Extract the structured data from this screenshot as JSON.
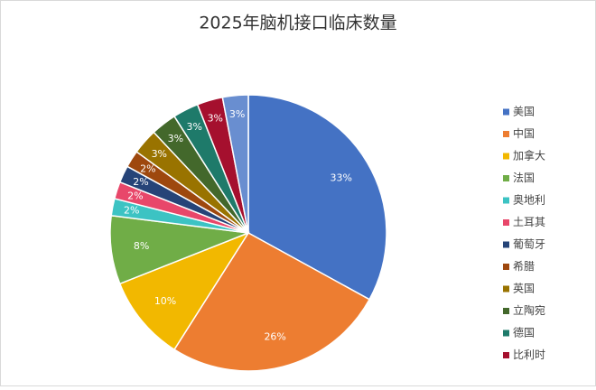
{
  "chart_data": {
    "type": "pie",
    "title": "2025年脑机接口临床数量",
    "categories": [
      "美国",
      "中国",
      "加拿大",
      "法国",
      "奥地利",
      "土耳其",
      "葡萄牙",
      "希腊",
      "英国",
      "立陶宛",
      "德国",
      "比利时",
      null
    ],
    "values": [
      33,
      26,
      10,
      8,
      2,
      2,
      2,
      2,
      3,
      3,
      3,
      3,
      3
    ],
    "value_labels": [
      "33%",
      "26%",
      "10%",
      "8%",
      "2%",
      "2%",
      "2%",
      "2%",
      "3%",
      "3%",
      "3%",
      "3%",
      "3%"
    ],
    "colors": [
      "#4472c4",
      "#ed7d31",
      "#f2b800",
      "#70ad47",
      "#3cc3c3",
      "#e8476a",
      "#264478",
      "#9e480e",
      "#997300",
      "#43682b",
      "#1e7a6a",
      "#a5102e",
      "#698ed0"
    ],
    "legend": "right"
  }
}
